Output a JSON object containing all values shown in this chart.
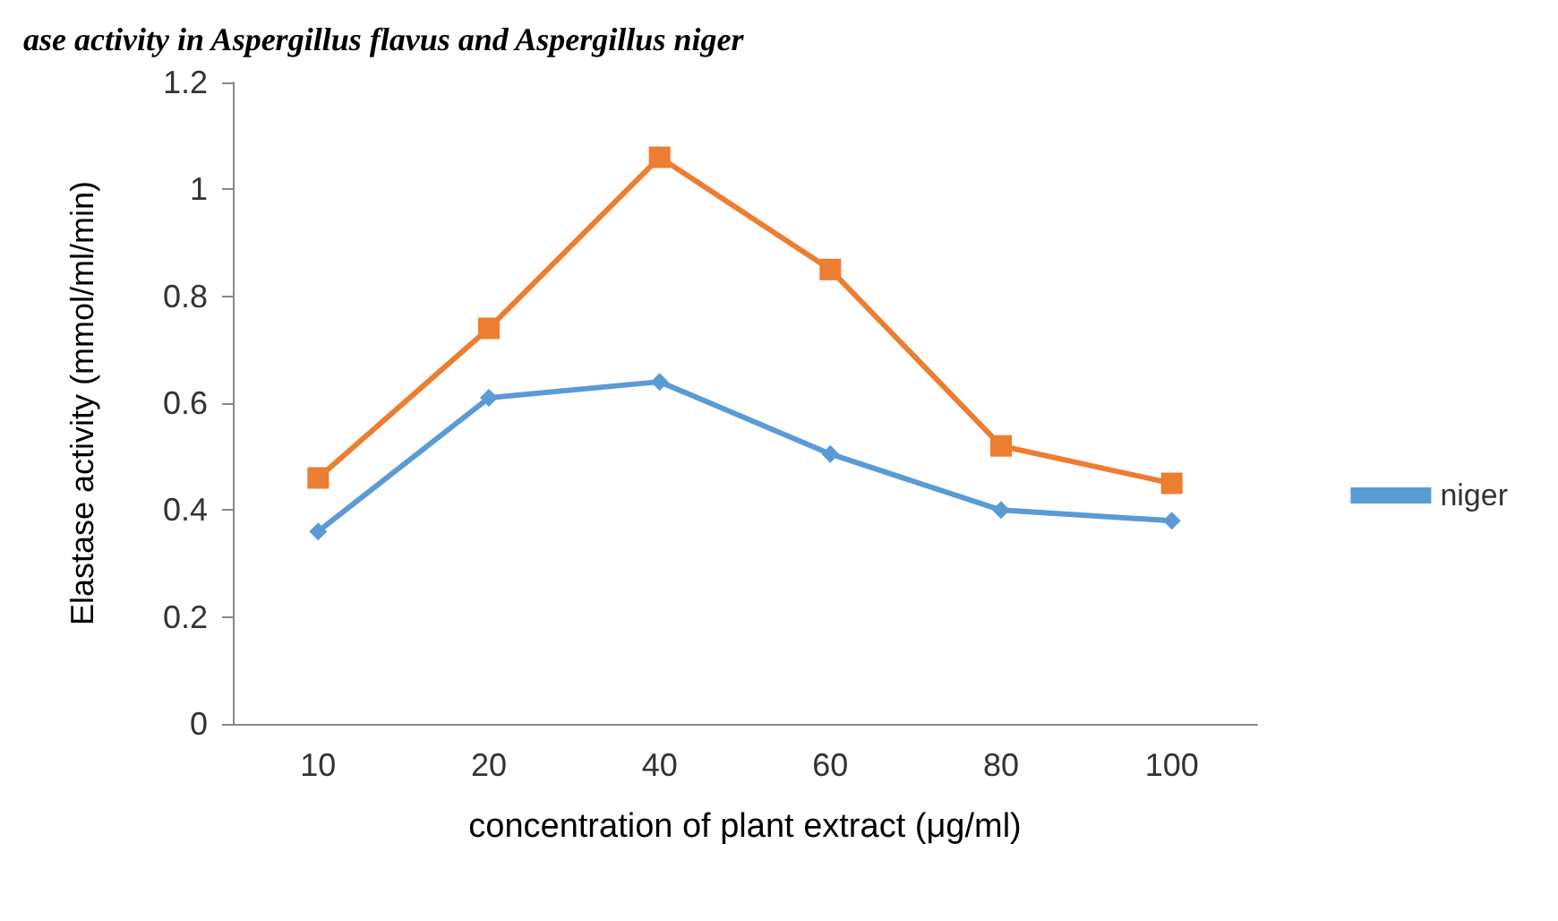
{
  "chart_data": {
    "type": "line",
    "title": "ase activity in Aspergillus flavus and Aspergillus niger",
    "xlabel": "concentration of plant extract (μg/ml)",
    "ylabel": "Elastase activity (mmol/ml/min)",
    "categories": [
      "10",
      "20",
      "40",
      "60",
      "80",
      "100"
    ],
    "series": [
      {
        "color": "#ed7d31",
        "marker": "square",
        "values": [
          0.46,
          0.74,
          1.06,
          0.85,
          0.52,
          0.45
        ]
      },
      {
        "name": "niger",
        "color": "#5b9bd5",
        "marker": "diamond",
        "values": [
          0.36,
          0.61,
          0.64,
          0.505,
          0.4,
          0.38
        ]
      }
    ],
    "ylim": [
      0,
      1.2
    ],
    "yticks": [
      0,
      0.2,
      0.4,
      0.6,
      0.8,
      1,
      1.2
    ],
    "grid": false,
    "legend": "right",
    "line_style": "solid"
  }
}
